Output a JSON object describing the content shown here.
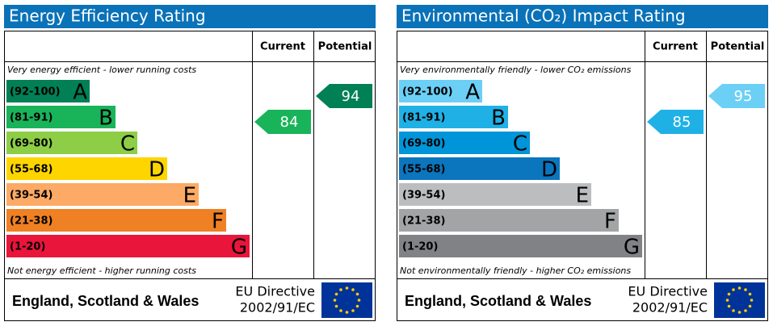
{
  "panels": [
    {
      "title": "Energy Efficiency Rating",
      "current_label": "Current",
      "potential_label": "Potential",
      "top_note": "Very energy efficient - lower running costs",
      "bottom_note": "Not energy efficient - higher running costs",
      "bands": [
        {
          "range": "(92-100)",
          "letter": "A",
          "min": 92,
          "color": "#008054"
        },
        {
          "range": "(81-91)",
          "letter": "B",
          "min": 81,
          "color": "#19b459"
        },
        {
          "range": "(69-80)",
          "letter": "C",
          "min": 69,
          "color": "#8dce46"
        },
        {
          "range": "(55-68)",
          "letter": "D",
          "min": 55,
          "color": "#ffd500"
        },
        {
          "range": "(39-54)",
          "letter": "E",
          "min": 39,
          "color": "#fcaa65"
        },
        {
          "range": "(21-38)",
          "letter": "F",
          "min": 21,
          "color": "#ef8023"
        },
        {
          "range": "(1-20)",
          "letter": "G",
          "min": 1,
          "color": "#e9153b"
        }
      ],
      "current": 84,
      "potential": 94,
      "region": "England, Scotland & Wales",
      "directive_1": "EU Directive",
      "directive_2": "2002/91/EC"
    },
    {
      "title": "Environmental (CO₂) Impact Rating",
      "current_label": "Current",
      "potential_label": "Potential",
      "top_note": "Very environmentally friendly - lower CO₂ emissions",
      "bottom_note": "Not environmentally friendly - higher CO₂ emissions",
      "bands": [
        {
          "range": "(92-100)",
          "letter": "A",
          "min": 92,
          "color": "#6ccff6"
        },
        {
          "range": "(81-91)",
          "letter": "B",
          "min": 81,
          "color": "#1fb1e6"
        },
        {
          "range": "(69-80)",
          "letter": "C",
          "min": 69,
          "color": "#0095d9"
        },
        {
          "range": "(55-68)",
          "letter": "D",
          "min": 55,
          "color": "#0b75be"
        },
        {
          "range": "(39-54)",
          "letter": "E",
          "min": 39,
          "color": "#bbbdbf"
        },
        {
          "range": "(21-38)",
          "letter": "F",
          "min": 21,
          "color": "#a2a4a6"
        },
        {
          "range": "(1-20)",
          "letter": "G",
          "min": 1,
          "color": "#808285"
        }
      ],
      "current": 85,
      "potential": 95,
      "region": "England, Scotland & Wales",
      "directive_1": "EU Directive",
      "directive_2": "2002/91/EC"
    }
  ]
}
